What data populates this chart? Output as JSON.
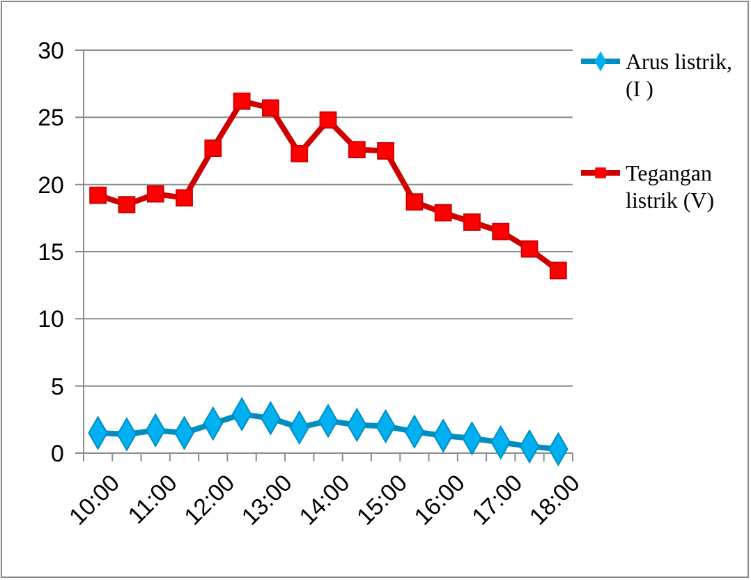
{
  "chart_data": {
    "type": "line",
    "categories": [
      "10:00",
      null,
      "11:00",
      null,
      "12:00",
      null,
      "13:00",
      null,
      "14:00",
      null,
      "15:00",
      null,
      "16:00",
      null,
      "17:00",
      null,
      "18:00"
    ],
    "series": [
      {
        "name": "Arus listrik, (I )",
        "color": "#00b0f0",
        "marker": "diamond",
        "values": [
          1.5,
          1.4,
          1.7,
          1.5,
          2.2,
          2.9,
          2.6,
          1.9,
          2.4,
          2.1,
          2.0,
          1.6,
          1.3,
          1.1,
          0.8,
          0.5,
          0.3
        ]
      },
      {
        "name": "Tegangan listrik (V)",
        "color": "#ff0000",
        "marker": "square",
        "values": [
          19.2,
          18.5,
          19.3,
          19.0,
          22.7,
          26.2,
          25.7,
          22.3,
          24.8,
          22.6,
          22.5,
          18.7,
          17.9,
          17.2,
          16.5,
          15.2,
          13.6
        ]
      }
    ],
    "ylim": [
      0,
      30
    ],
    "yticks": [
      0,
      5,
      10,
      15,
      20,
      25,
      30
    ],
    "grid": "y",
    "legend": "right",
    "line_style": "solid"
  }
}
